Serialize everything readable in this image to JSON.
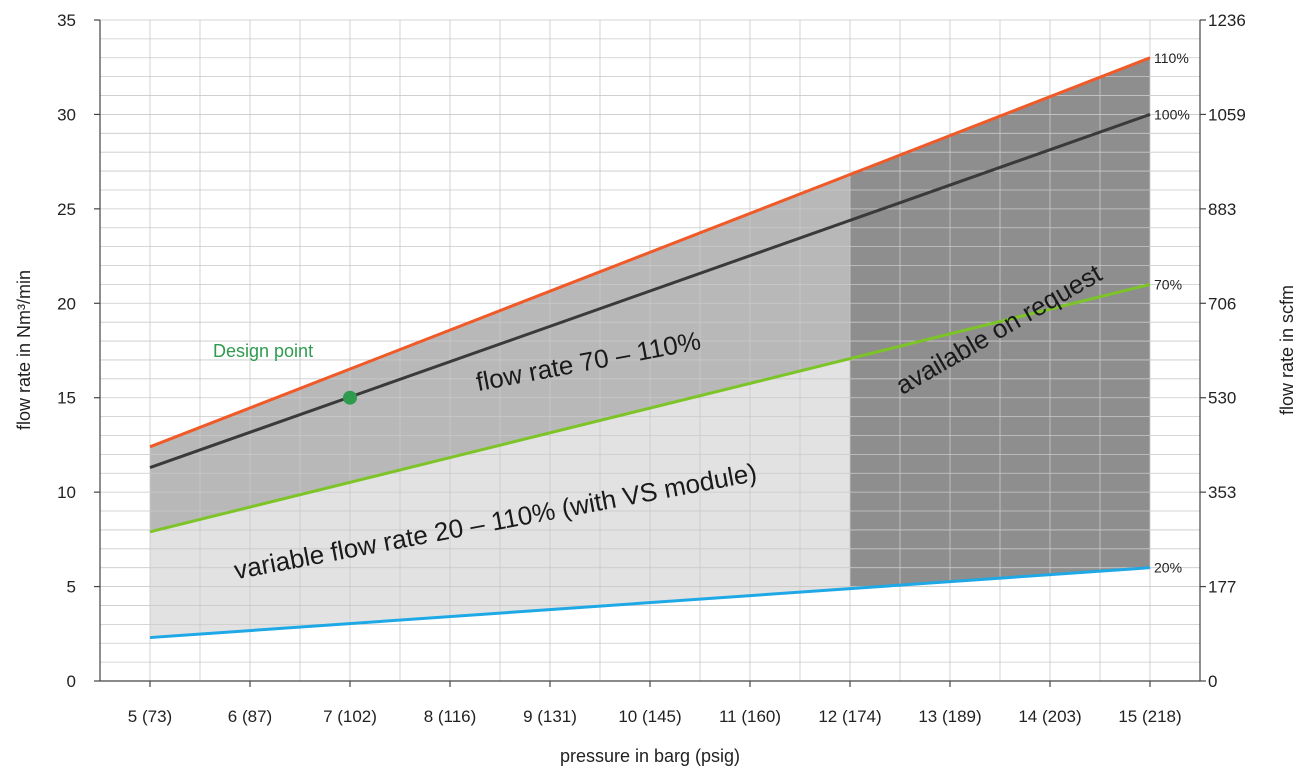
{
  "chart_data": {
    "type": "line",
    "xlabel": "pressure in barg (psig)",
    "ylabel": "flow rate in Nm³/min",
    "y2label": "flow rate in scfm",
    "x_categories": [
      "5 (73)",
      "6 (87)",
      "7 (102)",
      "8 (116)",
      "9 (131)",
      "10 (145)",
      "11 (160)",
      "12 (174)",
      "13 (189)",
      "14 (203)",
      "15 (218)"
    ],
    "x_values": [
      5,
      6,
      7,
      8,
      9,
      10,
      11,
      12,
      13,
      14,
      15
    ],
    "xlim": [
      4.5,
      15.5
    ],
    "ylim": [
      0,
      35
    ],
    "y_ticks": [
      0,
      5,
      10,
      15,
      20,
      25,
      30,
      35
    ],
    "y2_ticks": [
      "0",
      "177",
      "353",
      "530",
      "706",
      "883",
      "1059",
      "1236"
    ],
    "grid": true,
    "series": [
      {
        "name": "110%",
        "color": "#f05a28",
        "x": [
          5,
          15
        ],
        "y": [
          12.4,
          33.0
        ]
      },
      {
        "name": "100%",
        "color": "#3a3a3a",
        "x": [
          5,
          15
        ],
        "y": [
          11.3,
          30.0
        ]
      },
      {
        "name": "70%",
        "color": "#7cc427",
        "x": [
          5,
          15
        ],
        "y": [
          7.9,
          21.0
        ]
      },
      {
        "name": "20%",
        "color": "#1fa8e6",
        "x": [
          5,
          15
        ],
        "y": [
          2.3,
          6.0
        ]
      }
    ],
    "regions": [
      {
        "label": "flow rate 70 – 110%",
        "between": [
          "70%",
          "110%"
        ],
        "x_range": [
          5,
          12
        ],
        "color": "#b8b8b8"
      },
      {
        "label": "variable flow rate 20 – 110% (with VS module)",
        "between": [
          "20%",
          "70%"
        ],
        "x_range": [
          5,
          12
        ],
        "color": "#e2e2e2"
      },
      {
        "label": "available on request",
        "between": [
          "20%",
          "110%"
        ],
        "x_range": [
          12,
          15
        ],
        "color": "#8e8e8e"
      }
    ],
    "design_point": {
      "label": "Design point",
      "x": 7,
      "y": 15,
      "color": "#2e9b4e"
    }
  }
}
